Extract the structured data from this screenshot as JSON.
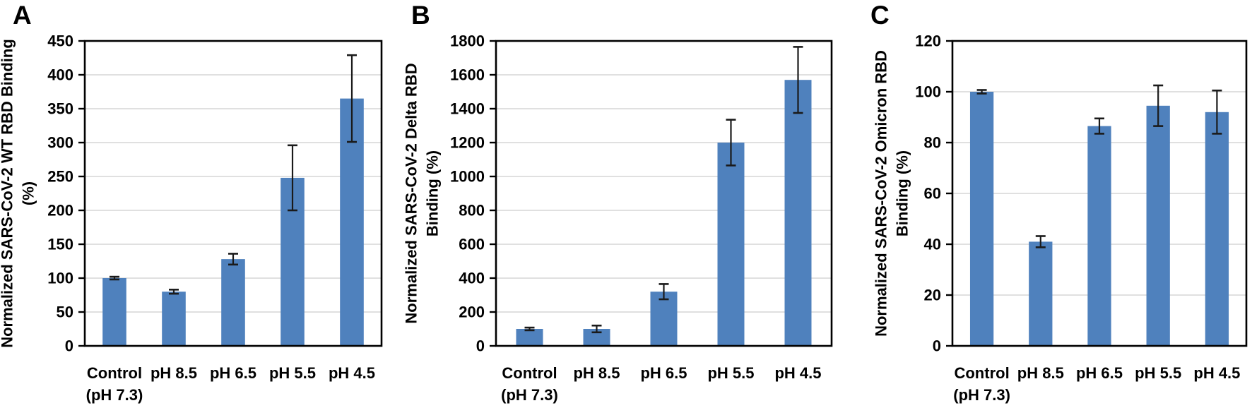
{
  "figure": {
    "background": "#ffffff",
    "bar_color": "#4F81BD",
    "bar_edge_color": "#44719F",
    "grid_color": "#D6D6D6",
    "axis_color": "#000000",
    "error_bar_color": "#1A1A1A",
    "text_color": "#000000"
  },
  "chart_data": [
    {
      "type": "bar",
      "panel_label": "A",
      "title": "",
      "xlabel": "",
      "ylabel": "Normalized SARS-CoV-2 WT RBD Binding (%)",
      "ylabel_lines": [
        "Normalized SARS-CoV-2 WT RBD Binding",
        "(%)"
      ],
      "categories": [
        "Control\n(pH 7.3)",
        "pH 8.5",
        "pH 6.5",
        "pH 5.5",
        "pH 4.5"
      ],
      "values": [
        100,
        80,
        128,
        248,
        365
      ],
      "errors": [
        2,
        3,
        8,
        48,
        64
      ],
      "ylim": [
        0,
        450
      ],
      "yticks": [
        0,
        50,
        100,
        150,
        200,
        250,
        300,
        350,
        400,
        450
      ],
      "grid": true,
      "legend": null
    },
    {
      "type": "bar",
      "panel_label": "B",
      "title": "",
      "xlabel": "",
      "ylabel": "Normalized SARS-CoV-2 Delta RBD Binding (%)",
      "ylabel_lines": [
        "Normalized SARS-CoV-2 Delta RBD",
        "Binding (%)"
      ],
      "categories": [
        "Control\n(pH 7.3)",
        "pH 8.5",
        "pH 6.5",
        "pH 5.5",
        "pH 4.5"
      ],
      "values": [
        100,
        100,
        320,
        1200,
        1570
      ],
      "errors": [
        8,
        20,
        45,
        135,
        195
      ],
      "ylim": [
        0,
        1800
      ],
      "yticks": [
        0,
        200,
        400,
        600,
        800,
        1000,
        1200,
        1400,
        1600,
        1800
      ],
      "grid": true,
      "legend": null
    },
    {
      "type": "bar",
      "panel_label": "C",
      "title": "",
      "xlabel": "",
      "ylabel": "Normalized SARS-CoV-2 Omicron RBD Binding (%)",
      "ylabel_lines": [
        "Normalized SARS-CoV-2 Omicron RBD",
        "Binding (%)"
      ],
      "categories": [
        "Control\n(pH 7.3)",
        "pH 8.5",
        "pH 6.5",
        "pH 5.5",
        "pH 4.5"
      ],
      "values": [
        100,
        41,
        86.5,
        94.5,
        92
      ],
      "errors": [
        0.7,
        2.2,
        3,
        8,
        8.5
      ],
      "ylim": [
        0,
        120
      ],
      "yticks": [
        0,
        20,
        40,
        60,
        80,
        100,
        120
      ],
      "grid": true,
      "legend": null
    }
  ]
}
